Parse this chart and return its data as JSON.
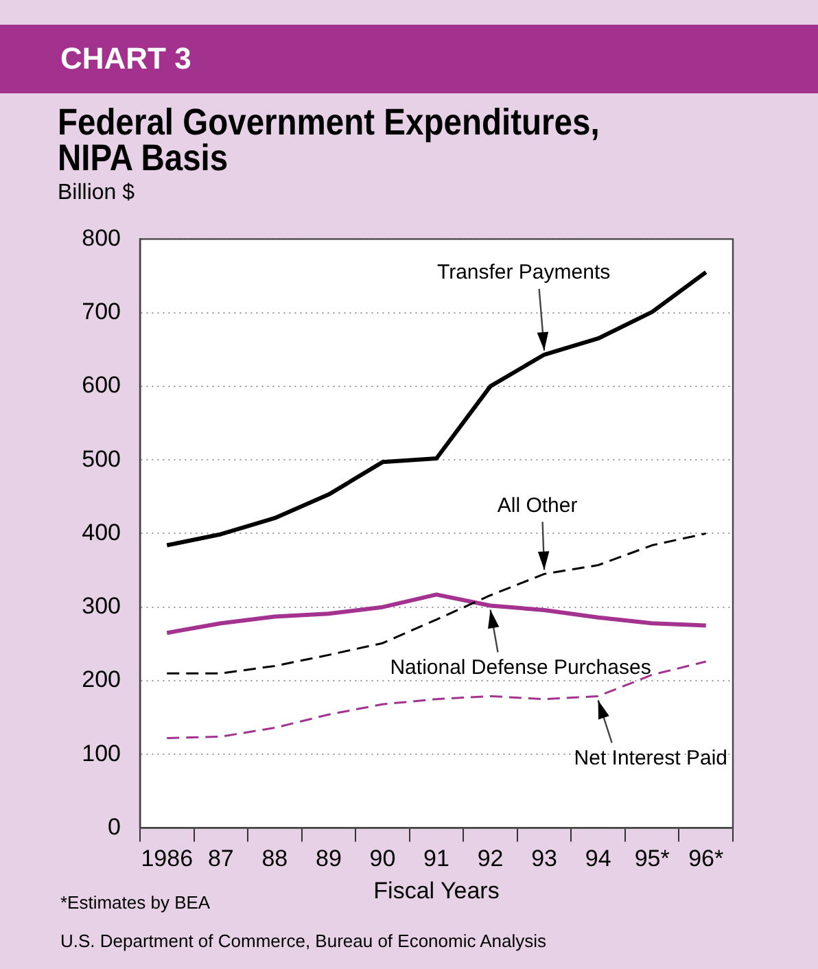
{
  "chart_data": {
    "type": "line",
    "subtitle": "CHART 3",
    "title": "Federal Government Expenditures, NIPA Basis",
    "ylabel": "Billion $",
    "xlabel": "Fiscal Years",
    "categories": [
      "1986",
      "87",
      "88",
      "89",
      "90",
      "91",
      "92",
      "93",
      "94",
      "95*",
      "96*"
    ],
    "series": [
      {
        "color": "#000000",
        "line_style": "solid",
        "values": [
          384,
          399,
          421,
          453,
          497,
          502,
          600,
          643,
          665,
          701,
          755
        ]
      },
      {
        "color": "#000000",
        "line_style": "dashed",
        "values": [
          210,
          210,
          220,
          235,
          251,
          283,
          316,
          345,
          357,
          384,
          400
        ]
      },
      {
        "color": "#a3338f",
        "line_style": "solid",
        "values": [
          265,
          278,
          287,
          291,
          300,
          317,
          302,
          296,
          286,
          278,
          275
        ]
      },
      {
        "color": "#a3338f",
        "line_style": "dashed",
        "values": [
          122,
          124,
          136,
          154,
          168,
          175,
          179,
          175,
          179,
          208,
          226
        ]
      }
    ],
    "ylim": [
      0,
      800
    ],
    "yticks": [
      0,
      100,
      200,
      300,
      400,
      500,
      600,
      700,
      800
    ],
    "grid": "y",
    "legend": false,
    "marker": "none",
    "annotations": [
      {
        "text": "Transfer Payments",
        "x": "93",
        "y": 643
      },
      {
        "text": "All Other",
        "x": "93",
        "y": 345
      },
      {
        "text": "National Defense Purchases",
        "x": "92",
        "y": 302
      },
      {
        "text": "Net Interest Paid",
        "x": "94",
        "y": 179
      },
      "*Estimates by BEA",
      "U.S. Department of Commerce, Bureau of Economic Analysis"
    ]
  }
}
